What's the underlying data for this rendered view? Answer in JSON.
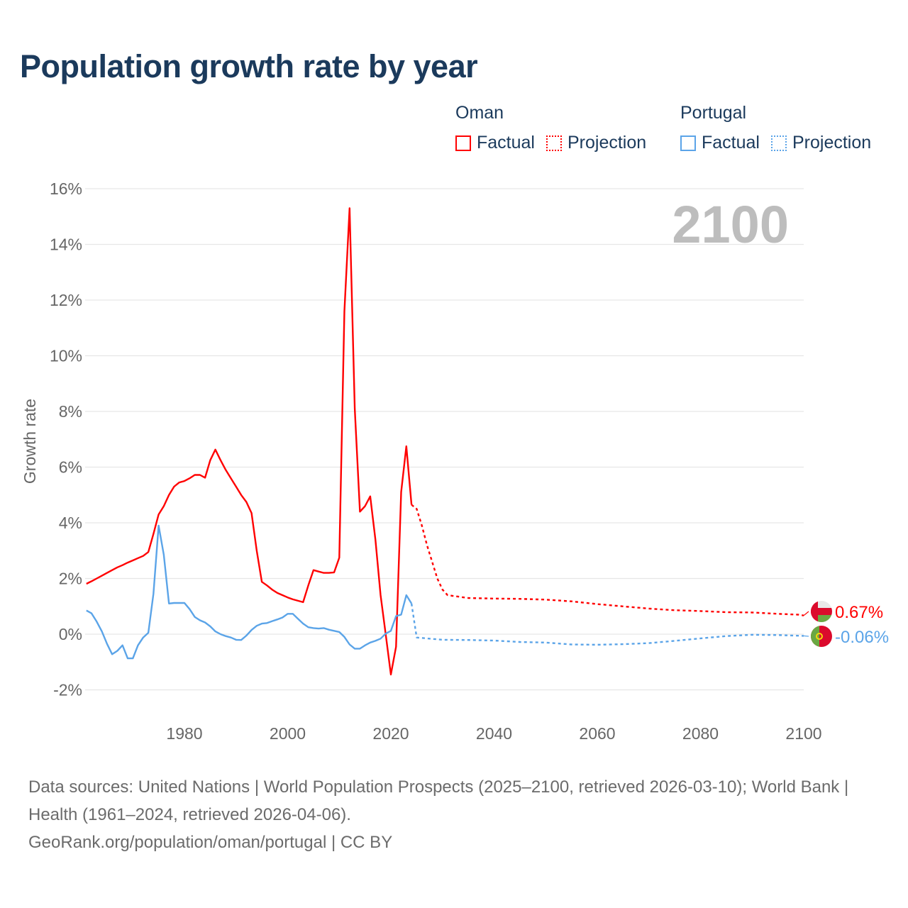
{
  "title": "Population growth rate by year",
  "legend": {
    "groups": [
      {
        "name": "Oman",
        "factual": "Factual",
        "projection": "Projection",
        "color": "#ff0000"
      },
      {
        "name": "Portugal",
        "factual": "Factual",
        "projection": "Projection",
        "color": "#5ba4e8"
      }
    ]
  },
  "year_overlay": "2100",
  "footer": {
    "sources": "Data sources: United Nations | World Population Prospects (2025–2100, retrieved 2026-03-10); World Bank | Health (1961–2024, retrieved 2026-04-06).",
    "credit": "GeoRank.org/population/oman/portugal | CC BY"
  },
  "chart_data": {
    "type": "line",
    "title": "Population growth rate by year",
    "xlabel": "",
    "ylabel": "Growth rate",
    "xlim": [
      1961,
      2100
    ],
    "ylim": [
      -3,
      16.5
    ],
    "xticks": [
      1980,
      2000,
      2020,
      2040,
      2060,
      2080,
      2100
    ],
    "yticks": [
      -2,
      0,
      2,
      4,
      6,
      8,
      10,
      12,
      14,
      16
    ],
    "ytick_labels": [
      "-2%",
      "0%",
      "2%",
      "4%",
      "6%",
      "8%",
      "10%",
      "12%",
      "14%",
      "16%"
    ],
    "grid": true,
    "legend_position": "top-right",
    "series": [
      {
        "name": "Oman Factual",
        "color": "#ff0000",
        "style": "solid",
        "x": [
          1961,
          1962,
          1963,
          1964,
          1965,
          1966,
          1967,
          1968,
          1969,
          1970,
          1971,
          1972,
          1973,
          1974,
          1975,
          1976,
          1977,
          1978,
          1979,
          1980,
          1981,
          1982,
          1983,
          1984,
          1985,
          1986,
          1987,
          1988,
          1989,
          1990,
          1991,
          1992,
          1993,
          1994,
          1995,
          1996,
          1997,
          1998,
          1999,
          2000,
          2001,
          2002,
          2003,
          2004,
          2005,
          2006,
          2007,
          2008,
          2009,
          2010,
          2011,
          2012,
          2013,
          2014,
          2015,
          2016,
          2017,
          2018,
          2019,
          2020,
          2021,
          2022,
          2023,
          2024
        ],
        "y": [
          1.81,
          1.9,
          2.0,
          2.1,
          2.2,
          2.3,
          2.4,
          2.48,
          2.57,
          2.65,
          2.73,
          2.81,
          2.95,
          3.6,
          4.3,
          4.6,
          5.0,
          5.3,
          5.45,
          5.5,
          5.6,
          5.72,
          5.72,
          5.62,
          6.25,
          6.63,
          6.25,
          5.9,
          5.6,
          5.3,
          5.0,
          4.75,
          4.35,
          3.0,
          1.88,
          1.75,
          1.6,
          1.48,
          1.4,
          1.32,
          1.25,
          1.2,
          1.15,
          1.75,
          2.3,
          2.25,
          2.2,
          2.2,
          2.22,
          2.75,
          11.6,
          15.3,
          8.1,
          4.4,
          4.6,
          4.95,
          3.4,
          1.4,
          0.0,
          -1.45,
          -0.45,
          5.1,
          6.75,
          4.65
        ]
      },
      {
        "name": "Oman Projection",
        "color": "#ff0000",
        "style": "dotted",
        "x": [
          2024,
          2025,
          2026,
          2027,
          2028,
          2029,
          2030,
          2031,
          2035,
          2040,
          2045,
          2050,
          2055,
          2060,
          2065,
          2070,
          2075,
          2080,
          2085,
          2090,
          2095,
          2099,
          2100
        ],
        "y": [
          4.65,
          4.5,
          3.9,
          3.2,
          2.6,
          2.0,
          1.6,
          1.4,
          1.3,
          1.28,
          1.27,
          1.24,
          1.18,
          1.08,
          1.0,
          0.92,
          0.86,
          0.83,
          0.79,
          0.78,
          0.73,
          0.7,
          0.67
        ]
      },
      {
        "name": "Portugal Factual",
        "color": "#5ba4e8",
        "style": "solid",
        "x": [
          1961,
          1962,
          1963,
          1964,
          1965,
          1966,
          1967,
          1968,
          1969,
          1970,
          1971,
          1972,
          1973,
          1974,
          1975,
          1976,
          1977,
          1978,
          1979,
          1980,
          1981,
          1982,
          1983,
          1984,
          1985,
          1986,
          1987,
          1988,
          1989,
          1990,
          1991,
          1992,
          1993,
          1994,
          1995,
          1996,
          1997,
          1998,
          1999,
          2000,
          2001,
          2002,
          2003,
          2004,
          2005,
          2006,
          2007,
          2008,
          2009,
          2010,
          2011,
          2012,
          2013,
          2014,
          2015,
          2016,
          2017,
          2018,
          2019,
          2020,
          2021,
          2022,
          2023,
          2024
        ],
        "y": [
          0.85,
          0.75,
          0.45,
          0.1,
          -0.35,
          -0.72,
          -0.6,
          -0.4,
          -0.87,
          -0.87,
          -0.4,
          -0.12,
          0.05,
          1.45,
          3.9,
          2.85,
          1.1,
          1.12,
          1.12,
          1.12,
          0.9,
          0.62,
          0.5,
          0.42,
          0.28,
          0.1,
          0.0,
          -0.07,
          -0.12,
          -0.2,
          -0.21,
          -0.05,
          0.15,
          0.3,
          0.38,
          0.4,
          0.47,
          0.53,
          0.6,
          0.73,
          0.73,
          0.55,
          0.38,
          0.25,
          0.22,
          0.2,
          0.22,
          0.16,
          0.12,
          0.08,
          -0.1,
          -0.37,
          -0.52,
          -0.52,
          -0.4,
          -0.3,
          -0.24,
          -0.16,
          0.02,
          0.12,
          0.65,
          0.7,
          1.4,
          1.1
        ]
      },
      {
        "name": "Portugal Projection",
        "color": "#5ba4e8",
        "style": "dotted",
        "x": [
          2024,
          2025,
          2030,
          2035,
          2040,
          2045,
          2050,
          2055,
          2060,
          2065,
          2070,
          2075,
          2080,
          2085,
          2090,
          2095,
          2100
        ],
        "y": [
          1.1,
          -0.12,
          -0.2,
          -0.21,
          -0.23,
          -0.28,
          -0.3,
          -0.37,
          -0.38,
          -0.36,
          -0.32,
          -0.24,
          -0.15,
          -0.07,
          -0.02,
          -0.03,
          -0.06
        ]
      }
    ],
    "end_labels": [
      {
        "country": "Oman",
        "value": "0.67%",
        "color": "#ff0000"
      },
      {
        "country": "Portugal",
        "value": "-0.06%",
        "color": "#5ba4e8"
      }
    ]
  }
}
